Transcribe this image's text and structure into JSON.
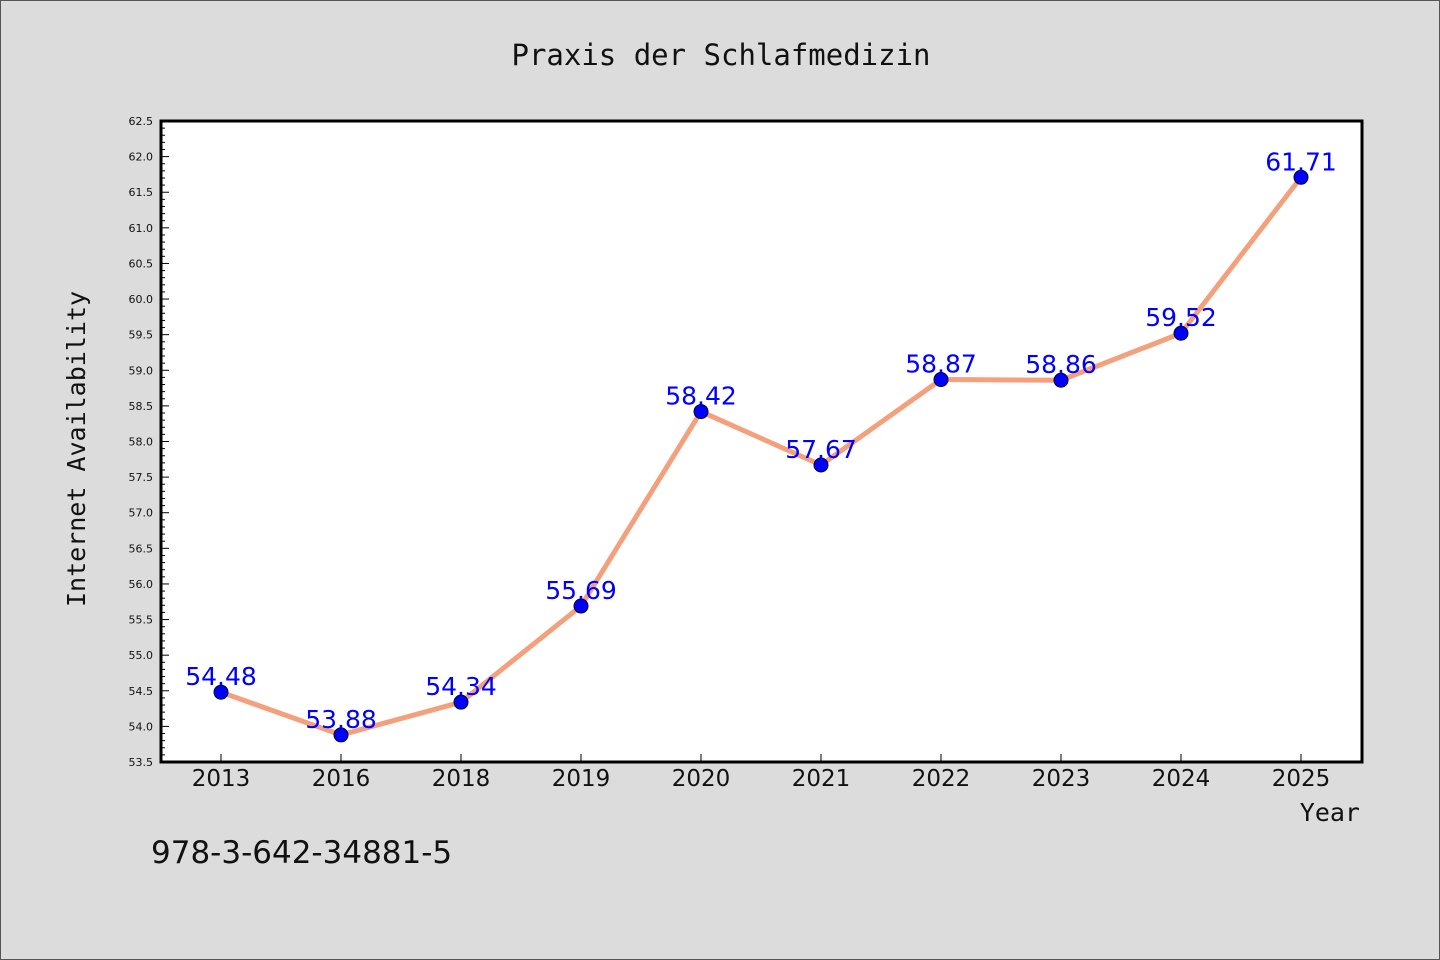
{
  "chart_data": {
    "type": "line",
    "title": "Praxis der Schlafmedizin",
    "xlabel": "Year",
    "ylabel": "Internet Availability",
    "categories": [
      "2013",
      "2016",
      "2018",
      "2019",
      "2020",
      "2021",
      "2022",
      "2023",
      "2024",
      "2025"
    ],
    "values": [
      54.48,
      53.88,
      54.34,
      55.69,
      58.42,
      57.67,
      58.87,
      58.86,
      59.52,
      61.71
    ],
    "data_labels": [
      "54.48",
      "53.88",
      "54.34",
      "55.69",
      "58.42",
      "57.67",
      "58.87",
      "58.86",
      "59.52",
      "61.71"
    ],
    "ylim": [
      53.5,
      62.5
    ],
    "yticks": [
      "53.5",
      "54.0",
      "54.5",
      "55.0",
      "55.5",
      "56.0",
      "56.5",
      "57.0",
      "57.5",
      "58.0",
      "58.5",
      "59.0",
      "59.5",
      "60.0",
      "60.5",
      "61.0",
      "61.5",
      "62.0",
      "62.5"
    ],
    "grid": false,
    "line_color": "#f4a07c",
    "marker_color": "#0000ff",
    "label_color": "#0000ff"
  },
  "footer": {
    "isbn": "978-3-642-34881-5"
  }
}
